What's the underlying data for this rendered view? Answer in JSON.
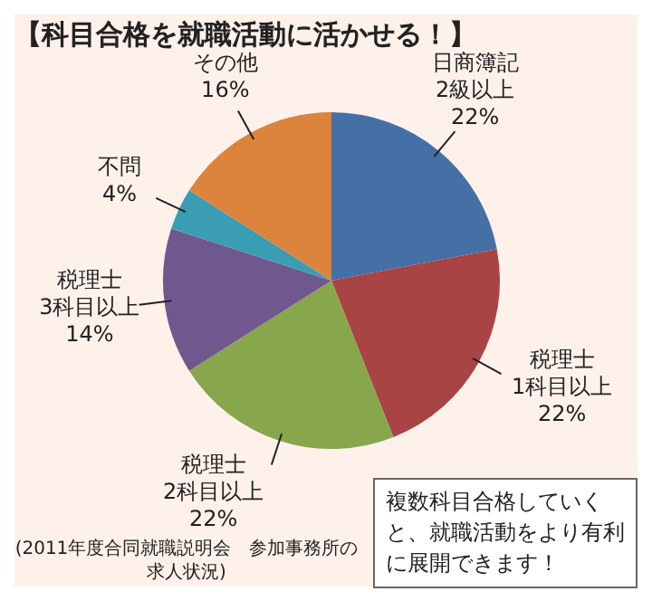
{
  "chart_data": {
    "type": "pie",
    "title": "【科目合格を就職活動に活かせる！】",
    "categories": [
      "日商簿記 2級以上",
      "税理士 1科目以上",
      "税理士 2科目以上",
      "税理士 3科目以上",
      "不問",
      "その他"
    ],
    "values": [
      22,
      22,
      22,
      14,
      4,
      16
    ],
    "value_labels": [
      "22%",
      "22%",
      "22%",
      "14%",
      "4%",
      "16%"
    ],
    "colors": [
      "#4470a6",
      "#a84444",
      "#88a64c",
      "#70588e",
      "#3a9db3",
      "#dc843c"
    ],
    "legend": false,
    "annotations": [
      "(2011年度合同就職説明会　参加事務所の求人状況)",
      "複数科目合格していくと、就職活動をより有利に展開できます！"
    ]
  }
}
